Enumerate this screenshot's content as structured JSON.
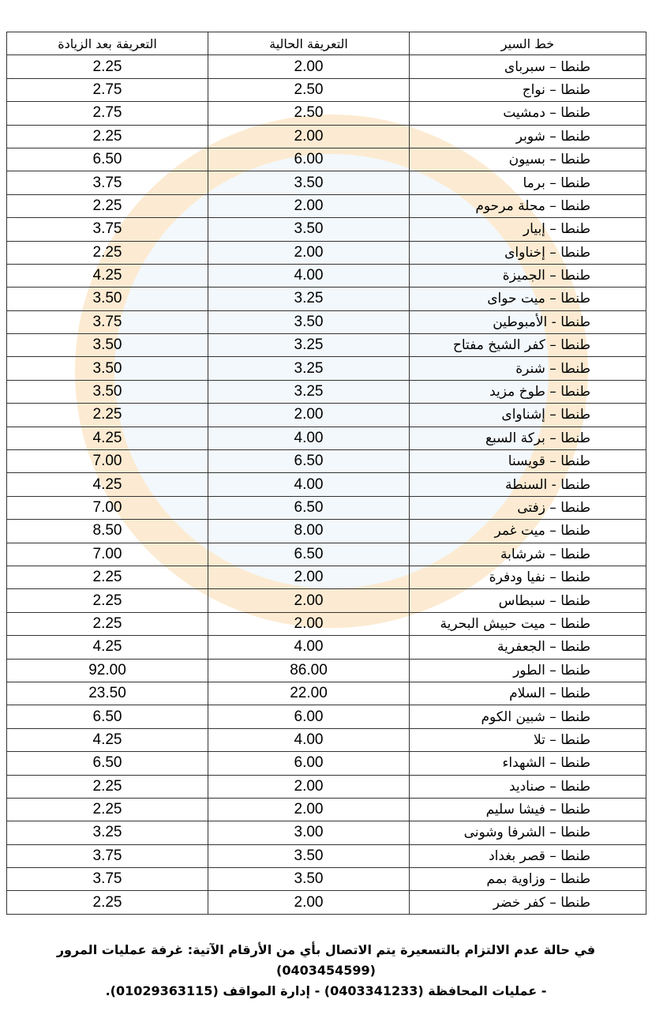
{
  "table": {
    "header": [
      "خط السير",
      "التعريفة الحالية",
      "التعريفة بعد الزيادة"
    ],
    "rows": [
      [
        "طنطا – سبرباى",
        "2.00",
        "2.25"
      ],
      [
        "طنطا – نواج",
        "2.50",
        "2.75"
      ],
      [
        "طنطا – دمشيت",
        "2.50",
        "2.75"
      ],
      [
        "طنطا – شوبر",
        "2.00",
        "2.25"
      ],
      [
        "طنطا – بسيون",
        "6.00",
        "6.50"
      ],
      [
        "طنطا – برما",
        "3.50",
        "3.75"
      ],
      [
        "طنطا – محلة مرحوم",
        "2.00",
        "2.25"
      ],
      [
        "طنطا – إبيار",
        "3.50",
        "3.75"
      ],
      [
        "طنطا – إخناواى",
        "2.00",
        "2.25"
      ],
      [
        "طنطا – الجميزة",
        "4.00",
        "4.25"
      ],
      [
        "طنطا – ميت حواى",
        "3.25",
        "3.50"
      ],
      [
        "طنطا - الأمبوطين",
        "3.50",
        "3.75"
      ],
      [
        "طنطا – كفر الشيخ مفتاح",
        "3.25",
        "3.50"
      ],
      [
        "طنطا – شنرة",
        "3.25",
        "3.50"
      ],
      [
        "طنطا – طوخ مزيد",
        "3.25",
        "3.50"
      ],
      [
        "طنطا – إشناواى",
        "2.00",
        "2.25"
      ],
      [
        "طنطا – بركة السبع",
        "4.00",
        "4.25"
      ],
      [
        "طنطا – قويسنا",
        "6.50",
        "7.00"
      ],
      [
        "طنطا - السنطة",
        "4.00",
        "4.25"
      ],
      [
        "طنطا – زفتى",
        "6.50",
        "7.00"
      ],
      [
        "طنطا – ميت غمر",
        "8.00",
        "8.50"
      ],
      [
        "طنطا – شرشابة",
        "6.50",
        "7.00"
      ],
      [
        "طنطا – نفيا ودفرة",
        "2.00",
        "2.25"
      ],
      [
        "طنطا – سبطاس",
        "2.00",
        "2.25"
      ],
      [
        "طنطا – ميت حبيش البحرية",
        "2.00",
        "2.25"
      ],
      [
        "طنطا – الجعفرية",
        "4.00",
        "4.25"
      ],
      [
        "طنطا – الطور",
        "86.00",
        "92.00"
      ],
      [
        "طنطا – السلام",
        "22.00",
        "23.50"
      ],
      [
        "طنطا – شبين الكوم",
        "6.00",
        "6.50"
      ],
      [
        "طنطا – تلا",
        "4.00",
        "4.25"
      ],
      [
        "طنطا – الشهداء",
        "6.00",
        "6.50"
      ],
      [
        "طنطا – صناديد",
        "2.00",
        "2.25"
      ],
      [
        "طنطا – فيشا سليم",
        "2.00",
        "2.25"
      ],
      [
        "طنطا – الشرفا وشونى",
        "3.00",
        "3.25"
      ],
      [
        "طنطا – قصر بغداد",
        "3.50",
        "3.75"
      ],
      [
        "طنطا – وزاوية بمم",
        "3.50",
        "3.75"
      ],
      [
        "طنطا – كفر خضر",
        "2.00",
        "2.25"
      ]
    ]
  },
  "footer": {
    "lines": [
      "في حالة عدم الالتزام بالتسعيرة يتم الاتصال بأي من الأرقام الآتية: غرفة عمليات المرور (0403454599)",
      "- عمليات المحافظة (0403341233) - إدارة المواقف (01029363115)."
    ]
  }
}
